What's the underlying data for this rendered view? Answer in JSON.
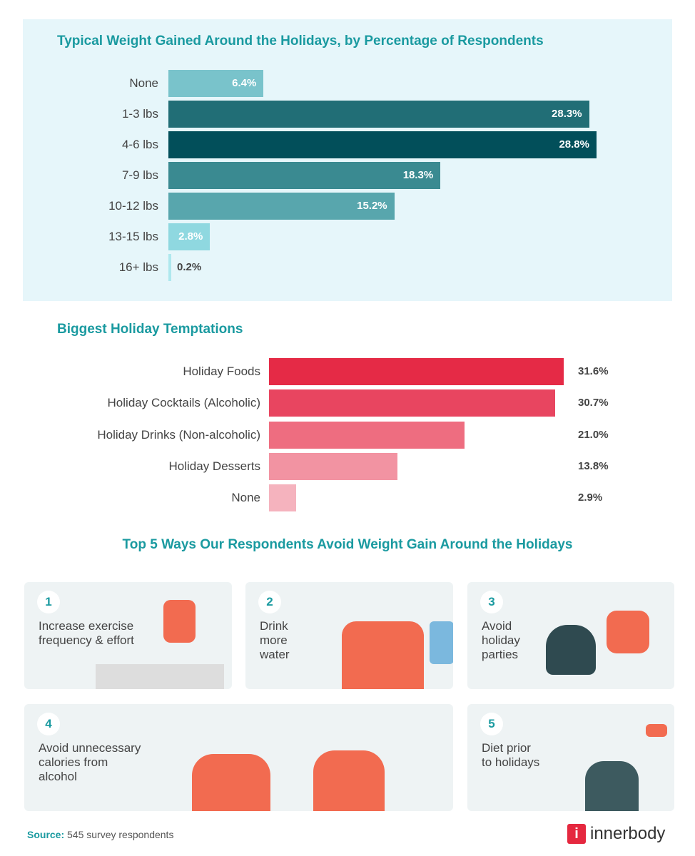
{
  "chart_data": [
    {
      "type": "bar",
      "orientation": "horizontal",
      "title": "Typical Weight Gained Around the Holidays, by Percentage of Respondents",
      "categories": [
        "None",
        "1-3 lbs",
        "4-6 lbs",
        "7-9 lbs",
        "10-12 lbs",
        "13-15 lbs",
        "16+ lbs"
      ],
      "values": [
        6.4,
        28.3,
        28.8,
        18.3,
        15.2,
        2.8,
        0.2
      ],
      "labels": [
        "6.4%",
        "28.3%",
        "28.8%",
        "18.3%",
        "15.2%",
        "2.8%",
        "0.2%"
      ],
      "colors": [
        "#79c3cb",
        "#216e76",
        "#024f5a",
        "#3a8a91",
        "#58a6ad",
        "#8fd8e0",
        "#aee8ee"
      ],
      "unit": "%",
      "grid": false
    },
    {
      "type": "bar",
      "orientation": "horizontal",
      "title": "Biggest Holiday Temptations",
      "categories": [
        "Holiday Foods",
        "Holiday Cocktails (Alcoholic)",
        "Holiday Drinks (Non-alcoholic)",
        "Holiday Desserts",
        "None"
      ],
      "values": [
        31.6,
        30.7,
        21.0,
        13.8,
        2.9
      ],
      "labels": [
        "31.6%",
        "30.7%",
        "21.0%",
        "13.8%",
        "2.9%"
      ],
      "colors": [
        "#e52a46",
        "#e84560",
        "#ee6d80",
        "#f293a2",
        "#f5b3be"
      ],
      "unit": "%",
      "grid": false
    }
  ],
  "ways": {
    "title": "Top 5 Ways Our Respondents Avoid Weight Gain Around the Holidays",
    "items": [
      {
        "num": "1",
        "text": "Increase exercise\nfrequency & effort"
      },
      {
        "num": "2",
        "text": "Drink\nmore\nwater"
      },
      {
        "num": "3",
        "text": "Avoid\nholiday\nparties"
      },
      {
        "num": "4",
        "text": "Avoid unnecessary\ncalories from\nalcohol"
      },
      {
        "num": "5",
        "text": "Diet prior\nto holidays"
      }
    ]
  },
  "footer": {
    "source_label": "Source:",
    "source_text": " 545 survey respondents",
    "logo_text": "innerbody",
    "logo_mark": "i"
  },
  "colors": {
    "accent": "#1a9aa0",
    "card_bg": "#eef3f4",
    "illustration": "#f26b50",
    "logo": "#e5283f"
  }
}
